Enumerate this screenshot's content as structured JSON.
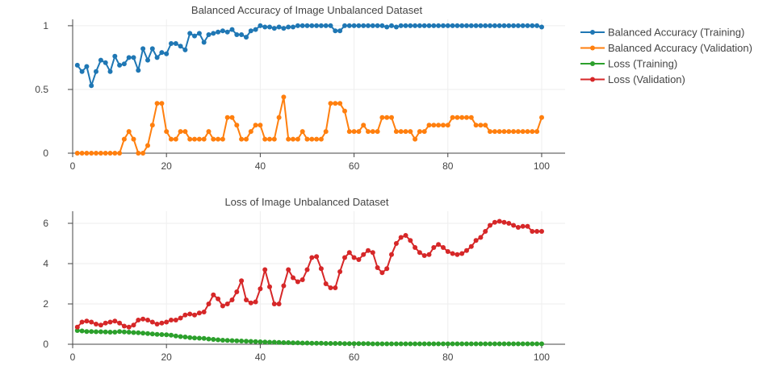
{
  "chart_data": [
    {
      "type": "line",
      "title": "Balanced Accuracy of Image Unbalanced Dataset",
      "xlabel": "",
      "ylabel": "",
      "xlim": [
        0,
        105
      ],
      "ylim": [
        0,
        1.05
      ],
      "x_ticks": [
        0,
        20,
        40,
        60,
        80,
        100
      ],
      "y_ticks": [
        0,
        0.5,
        1
      ],
      "grid": true,
      "legend_position": "right",
      "x": [
        1,
        2,
        3,
        4,
        5,
        6,
        7,
        8,
        9,
        10,
        11,
        12,
        13,
        14,
        15,
        16,
        17,
        18,
        19,
        20,
        21,
        22,
        23,
        24,
        25,
        26,
        27,
        28,
        29,
        30,
        31,
        32,
        33,
        34,
        35,
        36,
        37,
        38,
        39,
        40,
        41,
        42,
        43,
        44,
        45,
        46,
        47,
        48,
        49,
        50,
        51,
        52,
        53,
        54,
        55,
        56,
        57,
        58,
        59,
        60,
        61,
        62,
        63,
        64,
        65,
        66,
        67,
        68,
        69,
        70,
        71,
        72,
        73,
        74,
        75,
        76,
        77,
        78,
        79,
        80,
        81,
        82,
        83,
        84,
        85,
        86,
        87,
        88,
        89,
        90,
        91,
        92,
        93,
        94,
        95,
        96,
        97,
        98,
        99,
        100
      ],
      "series": [
        {
          "name": "Balanced Accuracy (Training)",
          "color": "#1f77b4",
          "values": [
            0.69,
            0.64,
            0.68,
            0.53,
            0.64,
            0.73,
            0.71,
            0.64,
            0.76,
            0.69,
            0.7,
            0.75,
            0.75,
            0.65,
            0.82,
            0.73,
            0.82,
            0.75,
            0.79,
            0.78,
            0.86,
            0.86,
            0.84,
            0.81,
            0.94,
            0.92,
            0.94,
            0.87,
            0.93,
            0.94,
            0.95,
            0.96,
            0.95,
            0.97,
            0.93,
            0.93,
            0.91,
            0.96,
            0.97,
            1.0,
            0.99,
            0.99,
            0.98,
            0.99,
            0.98,
            0.99,
            0.99,
            1.0,
            1.0,
            1.0,
            1.0,
            1.0,
            1.0,
            1.0,
            1.0,
            0.96,
            0.96,
            1.0,
            1.0,
            1.0,
            1.0,
            1.0,
            1.0,
            1.0,
            1.0,
            1.0,
            0.99,
            1.0,
            0.99,
            1.0,
            1.0,
            1.0,
            1.0,
            1.0,
            1.0,
            1.0,
            1.0,
            1.0,
            1.0,
            1.0,
            1.0,
            1.0,
            1.0,
            1.0,
            1.0,
            1.0,
            1.0,
            1.0,
            1.0,
            1.0,
            1.0,
            1.0,
            1.0,
            1.0,
            1.0,
            1.0,
            1.0,
            1.0,
            1.0,
            0.99
          ]
        },
        {
          "name": "Balanced Accuracy (Validation)",
          "color": "#ff7f0e",
          "values": [
            0,
            0,
            0,
            0,
            0,
            0,
            0,
            0,
            0,
            0,
            0.11,
            0.17,
            0.11,
            0,
            0,
            0.06,
            0.22,
            0.39,
            0.39,
            0.17,
            0.11,
            0.11,
            0.17,
            0.17,
            0.11,
            0.11,
            0.11,
            0.11,
            0.17,
            0.11,
            0.11,
            0.11,
            0.28,
            0.28,
            0.22,
            0.11,
            0.11,
            0.17,
            0.22,
            0.22,
            0.11,
            0.11,
            0.11,
            0.28,
            0.44,
            0.11,
            0.11,
            0.11,
            0.17,
            0.11,
            0.11,
            0.11,
            0.11,
            0.17,
            0.39,
            0.39,
            0.39,
            0.33,
            0.17,
            0.17,
            0.17,
            0.22,
            0.17,
            0.17,
            0.17,
            0.28,
            0.28,
            0.28,
            0.17,
            0.17,
            0.17,
            0.17,
            0.11,
            0.17,
            0.17,
            0.22,
            0.22,
            0.22,
            0.22,
            0.22,
            0.28,
            0.28,
            0.28,
            0.28,
            0.28,
            0.22,
            0.22,
            0.22,
            0.17,
            0.17,
            0.17,
            0.17,
            0.17,
            0.17,
            0.17,
            0.17,
            0.17,
            0.17,
            0.17,
            0.28
          ]
        }
      ]
    },
    {
      "type": "line",
      "title": "Loss of Image Unbalanced Dataset",
      "xlabel": "",
      "ylabel": "",
      "xlim": [
        0,
        105
      ],
      "ylim": [
        0,
        6.6
      ],
      "x_ticks": [
        0,
        20,
        40,
        60,
        80,
        100
      ],
      "y_ticks": [
        0,
        2,
        4,
        6
      ],
      "grid": true,
      "legend_position": "right",
      "x": [
        1,
        2,
        3,
        4,
        5,
        6,
        7,
        8,
        9,
        10,
        11,
        12,
        13,
        14,
        15,
        16,
        17,
        18,
        19,
        20,
        21,
        22,
        23,
        24,
        25,
        26,
        27,
        28,
        29,
        30,
        31,
        32,
        33,
        34,
        35,
        36,
        37,
        38,
        39,
        40,
        41,
        42,
        43,
        44,
        45,
        46,
        47,
        48,
        49,
        50,
        51,
        52,
        53,
        54,
        55,
        56,
        57,
        58,
        59,
        60,
        61,
        62,
        63,
        64,
        65,
        66,
        67,
        68,
        69,
        70,
        71,
        72,
        73,
        74,
        75,
        76,
        77,
        78,
        79,
        80,
        81,
        82,
        83,
        84,
        85,
        86,
        87,
        88,
        89,
        90,
        91,
        92,
        93,
        94,
        95,
        96,
        97,
        98,
        99,
        100
      ],
      "series": [
        {
          "name": "Loss (Training)",
          "color": "#2ca02c",
          "values": [
            0.68,
            0.66,
            0.63,
            0.63,
            0.62,
            0.62,
            0.61,
            0.6,
            0.6,
            0.63,
            0.61,
            0.6,
            0.58,
            0.57,
            0.55,
            0.53,
            0.51,
            0.49,
            0.48,
            0.47,
            0.45,
            0.41,
            0.38,
            0.36,
            0.33,
            0.31,
            0.3,
            0.29,
            0.26,
            0.24,
            0.22,
            0.2,
            0.19,
            0.18,
            0.17,
            0.16,
            0.15,
            0.14,
            0.13,
            0.12,
            0.11,
            0.1,
            0.1,
            0.09,
            0.08,
            0.08,
            0.07,
            0.07,
            0.06,
            0.06,
            0.05,
            0.05,
            0.05,
            0.04,
            0.04,
            0.04,
            0.04,
            0.03,
            0.03,
            0.03,
            0.03,
            0.03,
            0.03,
            0.02,
            0.02,
            0.02,
            0.02,
            0.02,
            0.02,
            0.02,
            0.02,
            0.02,
            0.02,
            0.02,
            0.02,
            0.02,
            0.02,
            0.02,
            0.02,
            0.02,
            0.02,
            0.02,
            0.02,
            0.02,
            0.02,
            0.02,
            0.02,
            0.02,
            0.02,
            0.02,
            0.02,
            0.02,
            0.02,
            0.02,
            0.02,
            0.02,
            0.02,
            0.02,
            0.02,
            0.02
          ]
        },
        {
          "name": "Loss (Validation)",
          "color": "#d62728",
          "values": [
            0.85,
            1.1,
            1.15,
            1.1,
            1.0,
            0.95,
            1.05,
            1.1,
            1.15,
            1.05,
            0.9,
            0.85,
            0.95,
            1.2,
            1.25,
            1.2,
            1.1,
            1.0,
            1.05,
            1.1,
            1.2,
            1.2,
            1.3,
            1.45,
            1.5,
            1.45,
            1.55,
            1.6,
            2.0,
            2.45,
            2.25,
            1.9,
            2.0,
            2.2,
            2.6,
            3.15,
            2.2,
            2.05,
            2.1,
            2.75,
            3.7,
            2.85,
            2.0,
            2.0,
            2.9,
            3.7,
            3.3,
            3.1,
            3.2,
            3.7,
            4.3,
            4.35,
            3.75,
            3.0,
            2.8,
            2.8,
            3.6,
            4.3,
            4.55,
            4.3,
            4.2,
            4.45,
            4.65,
            4.55,
            3.8,
            3.55,
            3.75,
            4.45,
            5.0,
            5.3,
            5.4,
            5.15,
            4.8,
            4.55,
            4.4,
            4.45,
            4.8,
            4.95,
            4.8,
            4.6,
            4.5,
            4.45,
            4.5,
            4.65,
            4.85,
            5.15,
            5.3,
            5.6,
            5.9,
            6.05,
            6.1,
            6.05,
            6.0,
            5.9,
            5.8,
            5.85,
            5.85,
            5.6,
            5.6,
            5.6
          ]
        }
      ]
    }
  ],
  "legend": {
    "items": [
      {
        "label": "Balanced Accuracy (Training)",
        "color": "#1f77b4"
      },
      {
        "label": "Balanced Accuracy (Validation)",
        "color": "#ff7f0e"
      },
      {
        "label": "Loss (Training)",
        "color": "#2ca02c"
      },
      {
        "label": "Loss (Validation)",
        "color": "#d62728"
      }
    ]
  }
}
